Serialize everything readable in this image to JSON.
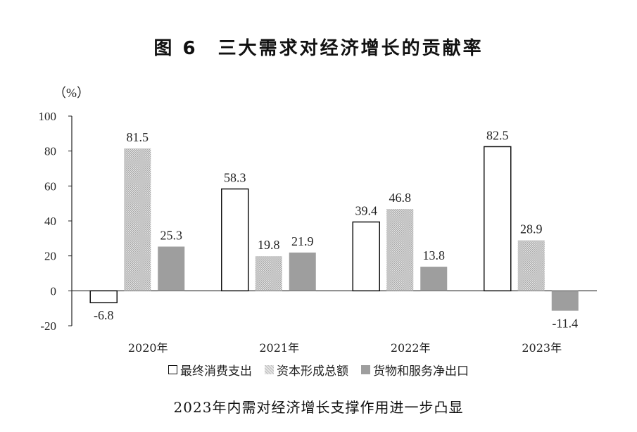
{
  "chart_data": {
    "type": "bar",
    "title": "图 6　三大需求对经济增长的贡献率",
    "subtitle": "2023年内需对经济增长支撑作用进一步凸显",
    "y_unit": "（%）",
    "categories": [
      "2020年",
      "2021年",
      "2022年",
      "2023年"
    ],
    "series": [
      {
        "name": "最终消费支出",
        "values": [
          -6.8,
          58.3,
          39.4,
          82.5
        ],
        "labels": [
          "-6.8",
          "58.3",
          "39.4",
          "82.5"
        ],
        "style": "outline",
        "color": "#111111"
      },
      {
        "name": "资本形成总额",
        "values": [
          81.5,
          19.8,
          46.8,
          28.9
        ],
        "labels": [
          "81.5",
          "19.8",
          "46.8",
          "28.9"
        ],
        "style": "pattern",
        "color": "#cfcfcf"
      },
      {
        "name": "货物和服务净出口",
        "values": [
          25.3,
          21.9,
          13.8,
          -11.4
        ],
        "labels": [
          "25.3",
          "21.9",
          "13.8",
          "-11.4"
        ],
        "style": "solid",
        "color": "#9e9e9e"
      }
    ],
    "ylim": [
      -20,
      100
    ],
    "yticks": [
      "100",
      "80",
      "60",
      "40",
      "20",
      "0",
      "-20"
    ],
    "grid": false,
    "legend": "bottom"
  }
}
